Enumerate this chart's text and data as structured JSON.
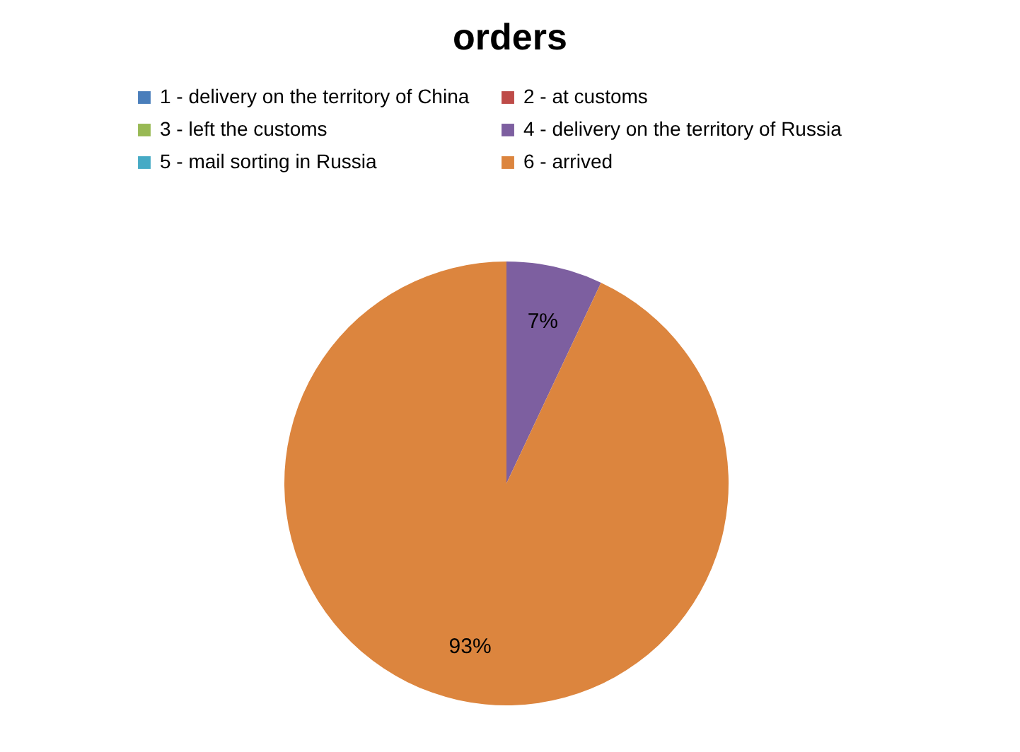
{
  "chart_data": {
    "type": "pie",
    "title": "orders",
    "categories": [
      "1 - delivery on the territory of China",
      "2 - at customs",
      "3 - left the customs",
      "4 - delivery on the territory of Russia",
      "5 - mail sorting in Russia",
      "6 - arrived"
    ],
    "values": [
      0,
      0,
      0,
      7,
      0,
      93
    ],
    "colors": [
      "#4a7ebb",
      "#be4b48",
      "#98b954",
      "#7d5fa0",
      "#46aac5",
      "#dc853e"
    ],
    "value_labels": [
      null,
      null,
      null,
      "7%",
      null,
      "93%"
    ],
    "legend": "top"
  }
}
